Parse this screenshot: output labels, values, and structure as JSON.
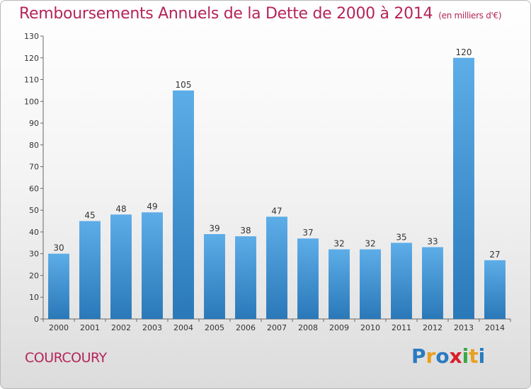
{
  "title": "Remboursements Annuels de la Dette de 2000 à 2014",
  "unit": "(en milliers d'€)",
  "city": "COURCOURY",
  "logo": {
    "text": "Proxiti",
    "letters": [
      {
        "ch": "P",
        "color": "#2a7ac0"
      },
      {
        "ch": "r",
        "color": "#e8a020"
      },
      {
        "ch": "o",
        "color": "#2a7ac0"
      },
      {
        "ch": "x",
        "color": "#d8202a"
      },
      {
        "ch": "i",
        "color": "#39a845"
      },
      {
        "ch": "t",
        "color": "#e8a020"
      },
      {
        "ch": "i",
        "color": "#2a7ac0"
      }
    ]
  },
  "colors": {
    "title": "#b5245a",
    "bar_top": "#5dade8",
    "bar_bottom": "#2a78b8"
  },
  "chart_data": {
    "type": "bar",
    "title": "Remboursements Annuels de la Dette de 2000 à 2014",
    "xlabel": "",
    "ylabel": "",
    "categories": [
      "2000",
      "2001",
      "2002",
      "2003",
      "2004",
      "2005",
      "2006",
      "2007",
      "2008",
      "2009",
      "2010",
      "2011",
      "2012",
      "2013",
      "2014"
    ],
    "values": [
      30,
      45,
      48,
      49,
      105,
      39,
      38,
      47,
      37,
      32,
      32,
      35,
      33,
      120,
      27
    ],
    "ylim": [
      0,
      130
    ],
    "yticks": [
      0,
      10,
      20,
      30,
      40,
      50,
      60,
      70,
      80,
      90,
      100,
      110,
      120,
      130
    ],
    "grid": false,
    "data_labels": true
  }
}
